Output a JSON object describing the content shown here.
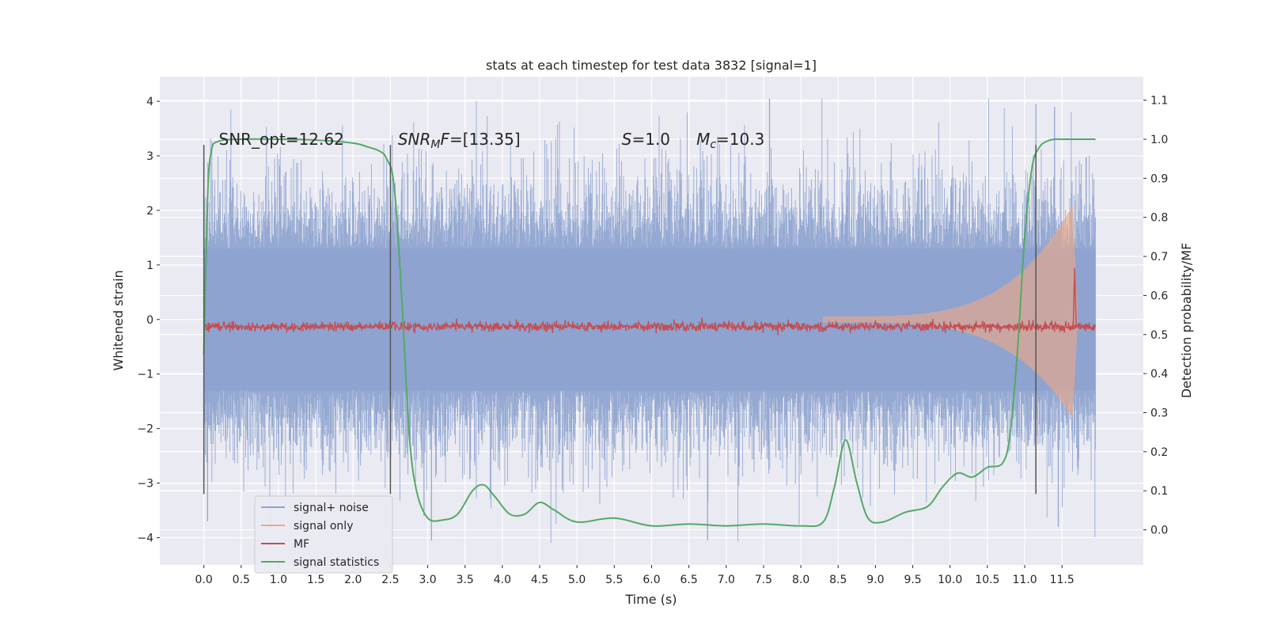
{
  "chart_data": {
    "type": "line",
    "title": "stats at each timestep for test data 3832 [signal=1]",
    "xlabel": "Time (s)",
    "ylabel": "Whitened strain",
    "y2label": "Detection probability/MF",
    "xlim": [
      -0.59,
      12.59
    ],
    "ylim": [
      -4.5,
      4.45
    ],
    "y2lim": [
      -0.09,
      1.16
    ],
    "xticks": [
      0.0,
      0.5,
      1.0,
      1.5,
      2.0,
      2.5,
      3.0,
      3.5,
      4.0,
      4.5,
      5.0,
      5.5,
      6.0,
      6.5,
      7.0,
      7.5,
      8.0,
      8.5,
      9.0,
      9.5,
      10.0,
      10.5,
      11.0,
      11.5
    ],
    "xtick_labels": [
      "0.0",
      "0.5",
      "1.0",
      "1.5",
      "2.0",
      "2.5",
      "3.0",
      "3.5",
      "4.0",
      "4.5",
      "5.0",
      "5.5",
      "6.0",
      "6.5",
      "7.0",
      "7.5",
      "8.0",
      "8.5",
      "9.0",
      "9.5",
      "10.0",
      "10.5",
      "11.0",
      "11.5"
    ],
    "yticks": [
      -4,
      -3,
      -2,
      -1,
      0,
      1,
      2,
      3,
      4
    ],
    "ytick_labels": [
      "−4",
      "−3",
      "−2",
      "−1",
      "0",
      "1",
      "2",
      "3",
      "4"
    ],
    "y2ticks": [
      0.0,
      0.1,
      0.2,
      0.3,
      0.4,
      0.5,
      0.6,
      0.7,
      0.8,
      0.9,
      1.0,
      1.1
    ],
    "y2tick_labels": [
      "0.0",
      "0.1",
      "0.2",
      "0.3",
      "0.4",
      "0.5",
      "0.6",
      "0.7",
      "0.8",
      "0.9",
      "1.0",
      "1.1"
    ],
    "grid": true,
    "legend_position": "lower-left",
    "colors": {
      "background": "#eaeaf2",
      "grid": "#ffffff",
      "signal_noise": "#8da3cf",
      "signal_only": "#e9a98a",
      "mf": "#c44e52",
      "signal_statistics": "#55a868",
      "vline": "#555555"
    },
    "annotations": [
      {
        "text": "SNR_opt=12.62",
        "x": 0.2,
        "y": 3.2
      },
      {
        "text": "SNR_MF=[13.35]",
        "x": 2.6,
        "y": 3.2
      },
      {
        "text": "S=1.0",
        "x": 5.6,
        "y": 3.2
      },
      {
        "text": "M_c=10.3",
        "x": 6.6,
        "y": 3.2
      }
    ],
    "vlines": [
      0.0,
      2.5,
      11.15
    ],
    "vline_ymin": -3.2,
    "vline_ymax": 3.2,
    "series": [
      {
        "name": "signal+ noise",
        "kind": "noise_band",
        "x_range": [
          0.0,
          11.95
        ],
        "core_amplitude": 1.3,
        "peak_amplitude": 4.05,
        "min_amplitude": -4.1
      },
      {
        "name": "signal only",
        "kind": "chirp_envelope",
        "x_range": [
          8.3,
          11.7
        ],
        "peak_y": 2.1,
        "trough_y": -1.8,
        "peak_x": 11.65
      },
      {
        "name": "MF",
        "kind": "mf_band",
        "axis": "right",
        "x_range": [
          0.0,
          11.95
        ],
        "baseline": 0.52,
        "spike_x": 11.67,
        "spike_value": 0.67
      },
      {
        "name": "signal statistics",
        "kind": "line",
        "axis": "right",
        "x": [
          0.0,
          0.05,
          0.1,
          0.2,
          0.5,
          1.0,
          1.5,
          2.0,
          2.2,
          2.35,
          2.45,
          2.55,
          2.65,
          2.75,
          2.85,
          3.0,
          3.2,
          3.4,
          3.6,
          3.75,
          3.9,
          4.1,
          4.3,
          4.5,
          4.7,
          5.0,
          5.5,
          6.0,
          6.5,
          7.0,
          7.5,
          8.0,
          8.3,
          8.45,
          8.6,
          8.75,
          8.9,
          9.1,
          9.4,
          9.7,
          9.9,
          10.1,
          10.3,
          10.5,
          10.7,
          10.8,
          10.9,
          11.0,
          11.1,
          11.2,
          11.3,
          11.4,
          11.5,
          11.7,
          11.95
        ],
        "y": [
          0.45,
          0.85,
          0.97,
          0.995,
          1.0,
          1.0,
          0.998,
          0.99,
          0.98,
          0.97,
          0.95,
          0.88,
          0.6,
          0.25,
          0.1,
          0.03,
          0.025,
          0.04,
          0.1,
          0.115,
          0.085,
          0.04,
          0.04,
          0.07,
          0.05,
          0.02,
          0.03,
          0.01,
          0.015,
          0.01,
          0.015,
          0.01,
          0.02,
          0.11,
          0.23,
          0.12,
          0.03,
          0.02,
          0.045,
          0.06,
          0.11,
          0.145,
          0.135,
          0.16,
          0.17,
          0.24,
          0.45,
          0.75,
          0.93,
          0.98,
          0.995,
          1.0,
          1.0,
          1.0,
          1.0
        ]
      }
    ]
  }
}
